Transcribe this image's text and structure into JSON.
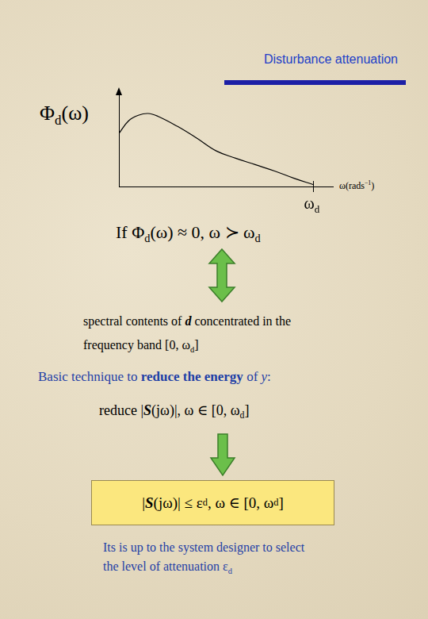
{
  "header": {
    "title": "Disturbance attenuation"
  },
  "chart_data": {
    "type": "line",
    "y_label": [
      {
        "t": "Φ"
      },
      {
        "t": "d",
        "sub": true
      },
      {
        "t": "(ω)"
      }
    ],
    "x_label": [
      {
        "t": "ω(rads"
      },
      {
        "t": "−1",
        "sup": true
      },
      {
        "t": ")"
      }
    ],
    "x_marker": {
      "value": 1.0,
      "label": [
        {
          "t": "ω"
        },
        {
          "t": "d",
          "sub": true
        }
      ]
    },
    "x": [
      0,
      0.05,
      0.1,
      0.15,
      0.2,
      0.3,
      0.4,
      0.5,
      0.6,
      0.7,
      0.8,
      0.9,
      1.0
    ],
    "values": [
      0.58,
      0.72,
      0.78,
      0.8,
      0.77,
      0.66,
      0.53,
      0.39,
      0.31,
      0.24,
      0.17,
      0.09,
      0.02
    ],
    "xlim": [
      0,
      1.1
    ],
    "ylim": [
      0,
      1
    ],
    "tick_labels": false,
    "grid": false,
    "color": "#000000"
  },
  "condition": [
    {
      "t": "If   "
    },
    {
      "t": "Φ"
    },
    {
      "t": "d",
      "sub": true
    },
    {
      "t": "(ω) ≈ 0, ω ≻ ω"
    },
    {
      "t": "d",
      "sub": true
    }
  ],
  "equivalence": [
    [
      {
        "t": "spectral contents of "
      },
      {
        "t": "d",
        "b": true,
        "i": true
      },
      {
        "t": " concentrated in the"
      }
    ],
    [
      {
        "t": "frequency band  [0, ω"
      },
      {
        "t": "d",
        "sub": true
      },
      {
        "t": "]"
      }
    ]
  ],
  "technique": [
    {
      "t": "Basic technique to "
    },
    {
      "t": "reduce the energy",
      "b": true
    },
    {
      "t": " of "
    },
    {
      "t": "y",
      "i": true
    },
    {
      "t": ":"
    }
  ],
  "reduce": [
    {
      "t": "reduce   |"
    },
    {
      "t": "S",
      "b": true,
      "i": true
    },
    {
      "t": "(jω)|, ω ∈ [0, ω"
    },
    {
      "t": "d",
      "sub": true
    },
    {
      "t": "]"
    }
  ],
  "bound": [
    {
      "t": "|"
    },
    {
      "t": "S",
      "b": true,
      "i": true
    },
    {
      "t": "(jω)| ≤ ε"
    },
    {
      "t": "d",
      "sub": true
    },
    {
      "t": " , ω ∈ [0, ω"
    },
    {
      "t": "d",
      "sub": true
    },
    {
      "t": "]"
    }
  ],
  "note": [
    [
      {
        "t": "Its is up to the system designer to select"
      }
    ],
    [
      {
        "t": "the level of attenuation  ε"
      },
      {
        "t": "d",
        "sub": true
      }
    ]
  ]
}
